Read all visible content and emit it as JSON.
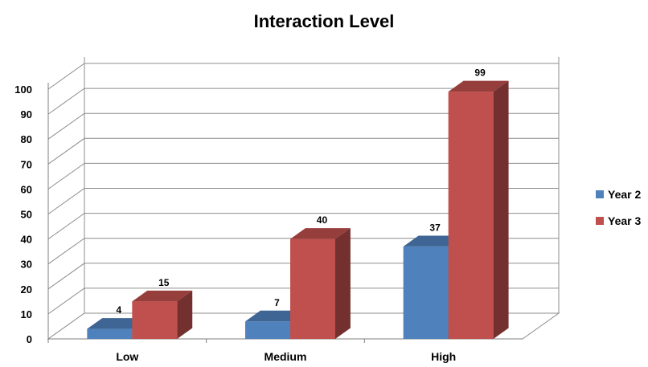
{
  "chart_data": {
    "type": "bar",
    "title": "Interaction Level",
    "xlabel": "",
    "ylabel": "",
    "categories": [
      "Low",
      "Medium",
      "High"
    ],
    "series": [
      {
        "name": "Year 2",
        "values": [
          4,
          7,
          37
        ],
        "color": "#4F81BD"
      },
      {
        "name": "Year 3",
        "values": [
          15,
          40,
          99
        ],
        "color": "#C0504D"
      }
    ],
    "ylim": [
      0,
      100
    ],
    "yticks": [
      0,
      10,
      20,
      30,
      40,
      50,
      60,
      70,
      80,
      90,
      100
    ],
    "grid": true,
    "legend": "right",
    "style": "3d-clustered-column"
  }
}
